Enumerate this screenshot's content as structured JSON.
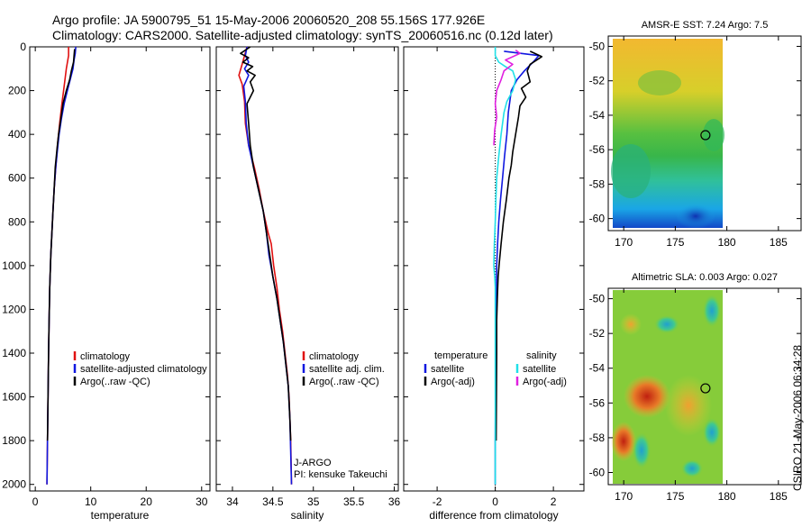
{
  "header": {
    "line1": "Argo profile: JA 5900795_51 15-May-2006 20060520_208 55.156S 177.926E",
    "line2": "Climatology: CARS2000. Satellite-adjusted climatology: synTS_20060516.nc (0.12d later)"
  },
  "side_stamp": "CSIRO 21-May-2006 06:34:28",
  "colors": {
    "clim": "#e01010",
    "sat": "#1018e0",
    "argo": "#000000",
    "sal_sat": "#20e0e8",
    "sal_argo": "#e020e0",
    "dot": "#000000"
  },
  "chart_data": [
    {
      "id": "temp",
      "type": "line",
      "xlabel": "temperature",
      "ylabel": "",
      "xlim": [
        -1,
        31.5
      ],
      "ylim": [
        2030,
        0
      ],
      "xticks": [
        0,
        10,
        20,
        30
      ],
      "yticks": [
        0,
        200,
        400,
        600,
        800,
        1000,
        1200,
        1400,
        1600,
        1800,
        2000
      ],
      "legend": {
        "placement": "center-right",
        "items": [
          {
            "label": "climatology",
            "color": "#e01010"
          },
          {
            "label": "satellite-adjusted climatology",
            "color": "#1018e0"
          },
          {
            "label": "Argo(..raw -QC)",
            "color": "#000000"
          }
        ]
      },
      "series": [
        {
          "name": "climatology",
          "color": "#e01010",
          "points": [
            [
              6.0,
              0
            ],
            [
              6.0,
              40
            ],
            [
              5.6,
              100
            ],
            [
              5.2,
              180
            ],
            [
              4.8,
              260
            ],
            [
              4.4,
              350
            ],
            [
              4.0,
              450
            ],
            [
              3.7,
              550
            ],
            [
              3.4,
              650
            ],
            [
              3.2,
              750
            ],
            [
              3.0,
              850
            ],
            [
              2.8,
              950
            ],
            [
              2.6,
              1100
            ],
            [
              2.5,
              1250
            ],
            [
              2.4,
              1400
            ],
            [
              2.3,
              1600
            ],
            [
              2.2,
              1800
            ],
            [
              2.1,
              2000
            ]
          ]
        },
        {
          "name": "satellite-adjusted",
          "color": "#1018e0",
          "points": [
            [
              7.3,
              0
            ],
            [
              7.2,
              30
            ],
            [
              7.0,
              60
            ],
            [
              6.8,
              100
            ],
            [
              6.3,
              150
            ],
            [
              5.8,
              200
            ],
            [
              5.2,
              260
            ],
            [
              4.7,
              330
            ],
            [
              4.3,
              400
            ],
            [
              4.0,
              470
            ],
            [
              3.7,
              550
            ],
            [
              3.4,
              650
            ],
            [
              3.2,
              750
            ],
            [
              3.0,
              850
            ],
            [
              2.8,
              950
            ],
            [
              2.6,
              1100
            ],
            [
              2.5,
              1250
            ],
            [
              2.4,
              1400
            ],
            [
              2.3,
              1600
            ],
            [
              2.2,
              1800
            ],
            [
              2.1,
              2000
            ]
          ]
        },
        {
          "name": "Argo",
          "color": "#000000",
          "points": [
            [
              7.1,
              10
            ],
            [
              7.0,
              40
            ],
            [
              6.9,
              70
            ],
            [
              6.5,
              110
            ],
            [
              6.2,
              150
            ],
            [
              5.6,
              200
            ],
            [
              5.0,
              260
            ],
            [
              4.6,
              330
            ],
            [
              4.2,
              400
            ],
            [
              3.9,
              470
            ],
            [
              3.6,
              550
            ],
            [
              3.4,
              650
            ],
            [
              3.2,
              750
            ],
            [
              3.0,
              850
            ],
            [
              2.8,
              950
            ],
            [
              2.6,
              1100
            ],
            [
              2.5,
              1250
            ],
            [
              2.4,
              1400
            ],
            [
              2.3,
              1600
            ],
            [
              2.2,
              1800
            ]
          ]
        }
      ]
    },
    {
      "id": "sal",
      "type": "line",
      "xlabel": "salinity",
      "ylabel": "",
      "xlim": [
        33.8,
        36.05
      ],
      "ylim": [
        2030,
        0
      ],
      "xticks": [
        34,
        34.5,
        35,
        35.5,
        36
      ],
      "yticks": [
        0,
        200,
        400,
        600,
        800,
        1000,
        1200,
        1400,
        1600,
        1800,
        2000
      ],
      "legend": {
        "placement": "center-right",
        "items": [
          {
            "label": "climatology",
            "color": "#e01010"
          },
          {
            "label": "satellite adj. clim.",
            "color": "#1018e0"
          },
          {
            "label": "Argo(..raw -QC)",
            "color": "#000000"
          }
        ]
      },
      "annotation": [
        "J-ARGO",
        "PI: kensuke Takeuchi"
      ],
      "series": [
        {
          "name": "climatology",
          "color": "#e01010",
          "points": [
            [
              34.18,
              0
            ],
            [
              34.12,
              80
            ],
            [
              34.08,
              130
            ],
            [
              34.12,
              170
            ],
            [
              34.15,
              250
            ],
            [
              34.16,
              350
            ],
            [
              34.2,
              450
            ],
            [
              34.27,
              550
            ],
            [
              34.33,
              650
            ],
            [
              34.38,
              750
            ],
            [
              34.44,
              850
            ],
            [
              34.48,
              900
            ],
            [
              34.51,
              1000
            ],
            [
              34.55,
              1100
            ],
            [
              34.58,
              1200
            ],
            [
              34.62,
              1300
            ],
            [
              34.65,
              1400
            ],
            [
              34.68,
              1500
            ],
            [
              34.7,
              1600
            ],
            [
              34.71,
              1700
            ],
            [
              34.72,
              1800
            ],
            [
              34.73,
              2000
            ]
          ]
        },
        {
          "name": "satellite-adjusted",
          "color": "#1018e0",
          "points": [
            [
              34.18,
              0
            ],
            [
              34.16,
              40
            ],
            [
              34.2,
              70
            ],
            [
              34.15,
              100
            ],
            [
              34.2,
              130
            ],
            [
              34.14,
              180
            ],
            [
              34.16,
              250
            ],
            [
              34.17,
              350
            ],
            [
              34.2,
              450
            ],
            [
              34.26,
              550
            ],
            [
              34.32,
              650
            ],
            [
              34.38,
              750
            ],
            [
              34.42,
              850
            ],
            [
              34.45,
              950
            ],
            [
              34.5,
              1050
            ],
            [
              34.55,
              1150
            ],
            [
              34.59,
              1250
            ],
            [
              34.63,
              1350
            ],
            [
              34.66,
              1450
            ],
            [
              34.69,
              1550
            ],
            [
              34.71,
              1700
            ],
            [
              34.72,
              1850
            ],
            [
              34.73,
              2000
            ]
          ]
        },
        {
          "name": "Argo",
          "color": "#000000",
          "points": [
            [
              34.22,
              0
            ],
            [
              34.1,
              30
            ],
            [
              34.2,
              50
            ],
            [
              34.13,
              70
            ],
            [
              34.25,
              90
            ],
            [
              34.18,
              110
            ],
            [
              34.28,
              130
            ],
            [
              34.22,
              160
            ],
            [
              34.26,
              200
            ],
            [
              34.18,
              260
            ],
            [
              34.2,
              350
            ],
            [
              34.22,
              450
            ],
            [
              34.26,
              550
            ],
            [
              34.32,
              650
            ],
            [
              34.38,
              750
            ],
            [
              34.42,
              850
            ],
            [
              34.46,
              950
            ],
            [
              34.5,
              1050
            ],
            [
              34.55,
              1150
            ],
            [
              34.59,
              1250
            ],
            [
              34.63,
              1350
            ],
            [
              34.66,
              1450
            ],
            [
              34.69,
              1550
            ],
            [
              34.71,
              1700
            ],
            [
              34.72,
              1800
            ]
          ]
        }
      ]
    },
    {
      "id": "diff",
      "type": "line",
      "xlabel": "difference from climatology",
      "ylabel": "",
      "xlim": [
        -3.15,
        3.05
      ],
      "ylim": [
        2030,
        0
      ],
      "xticks": [
        -2,
        0,
        2
      ],
      "yticks": [
        0,
        200,
        400,
        600,
        800,
        1000,
        1200,
        1400,
        1600,
        1800,
        2000
      ],
      "legend_left": {
        "title": "temperature",
        "items": [
          {
            "label": "satellite",
            "color": "#1018e0"
          },
          {
            "label": "Argo(-adj)",
            "color": "#000000"
          }
        ]
      },
      "legend_right": {
        "title": "salinity",
        "items": [
          {
            "label": "satellite",
            "color": "#20e0e8"
          },
          {
            "label": "Argo(-adj)",
            "color": "#e020e0"
          }
        ]
      },
      "series": [
        {
          "name": "temp satellite",
          "color": "#1018e0",
          "points": [
            [
              0.3,
              20
            ],
            [
              0.9,
              30
            ],
            [
              1.5,
              40
            ],
            [
              1.3,
              70
            ],
            [
              1.0,
              110
            ],
            [
              0.75,
              150
            ],
            [
              0.55,
              200
            ],
            [
              0.45,
              300
            ],
            [
              0.4,
              400
            ],
            [
              0.32,
              500
            ],
            [
              0.25,
              600
            ],
            [
              0.18,
              700
            ],
            [
              0.12,
              800
            ],
            [
              0.08,
              900
            ],
            [
              0.05,
              1000
            ],
            [
              0.04,
              1100
            ],
            [
              0.03,
              1250
            ],
            [
              0.02,
              1400
            ],
            [
              0.01,
              1600
            ],
            [
              0.0,
              1800
            ],
            [
              0.0,
              2000
            ]
          ]
        },
        {
          "name": "temp Argo",
          "color": "#000000",
          "points": [
            [
              1.2,
              20
            ],
            [
              1.6,
              45
            ],
            [
              1.2,
              80
            ],
            [
              1.1,
              110
            ],
            [
              1.2,
              160
            ],
            [
              0.9,
              190
            ],
            [
              1.05,
              230
            ],
            [
              0.85,
              270
            ],
            [
              0.8,
              320
            ],
            [
              0.7,
              400
            ],
            [
              0.6,
              480
            ],
            [
              0.55,
              540
            ],
            [
              0.47,
              600
            ],
            [
              0.38,
              700
            ],
            [
              0.28,
              800
            ],
            [
              0.2,
              900
            ],
            [
              0.13,
              1000
            ],
            [
              0.1,
              1050
            ],
            [
              0.07,
              1150
            ],
            [
              0.05,
              1250
            ],
            [
              0.05,
              1400
            ],
            [
              0.04,
              1600
            ],
            [
              0.03,
              1800
            ]
          ]
        },
        {
          "name": "sal satellite",
          "color": "#20e0e8",
          "points": [
            [
              0.0,
              0
            ],
            [
              0.0,
              40
            ],
            [
              0.12,
              70
            ],
            [
              0.35,
              90
            ],
            [
              0.6,
              110
            ],
            [
              0.7,
              150
            ],
            [
              0.6,
              200
            ],
            [
              0.4,
              250
            ],
            [
              0.3,
              300
            ],
            [
              0.2,
              400
            ],
            [
              0.12,
              500
            ],
            [
              0.05,
              600
            ],
            [
              0.02,
              700
            ],
            [
              0.0,
              800
            ],
            [
              -0.03,
              900
            ],
            [
              -0.05,
              1000
            ],
            [
              -0.02,
              1050
            ],
            [
              0.0,
              1100
            ],
            [
              0.0,
              1300
            ],
            [
              0.0,
              1500
            ],
            [
              0.0,
              1700
            ],
            [
              0.0,
              1900
            ],
            [
              0.0,
              2000
            ]
          ]
        },
        {
          "name": "sal Argo",
          "color": "#e020e0",
          "points": [
            [
              0.7,
              15
            ],
            [
              0.85,
              30
            ],
            [
              0.35,
              60
            ],
            [
              0.6,
              80
            ],
            [
              0.3,
              110
            ],
            [
              0.2,
              150
            ],
            [
              0.05,
              200
            ],
            [
              0.0,
              260
            ],
            [
              0.05,
              320
            ],
            [
              -0.02,
              380
            ],
            [
              -0.05,
              450
            ]
          ]
        }
      ]
    },
    {
      "id": "sst",
      "type": "heatmap",
      "title": "AMSR-E SST: 7.24 Argo: 7.5",
      "xlim": [
        168.5,
        187.2
      ],
      "ylim": [
        -60.7,
        -49.4
      ],
      "xticks": [
        170,
        175,
        180,
        185
      ],
      "yticks": [
        -50,
        -52,
        -54,
        -56,
        -58,
        -60
      ],
      "data_extent": {
        "lon": [
          169.0,
          180.0
        ],
        "lat": [
          -60.0,
          -49.8
        ]
      },
      "argo_point": {
        "lon": 177.926,
        "lat": -55.156
      }
    },
    {
      "id": "sla",
      "type": "heatmap",
      "title": "Altimetric SLA: 0.003 Argo: 0.027",
      "xlim": [
        168.5,
        187.2
      ],
      "ylim": [
        -60.7,
        -49.4
      ],
      "xticks": [
        170,
        175,
        180,
        185
      ],
      "yticks": [
        -50,
        -52,
        -54,
        -56,
        -58,
        -60
      ],
      "data_extent": {
        "lon": [
          169.0,
          180.0
        ],
        "lat": [
          -60.0,
          -49.8
        ]
      },
      "argo_point": {
        "lon": 177.926,
        "lat": -55.156
      }
    }
  ]
}
